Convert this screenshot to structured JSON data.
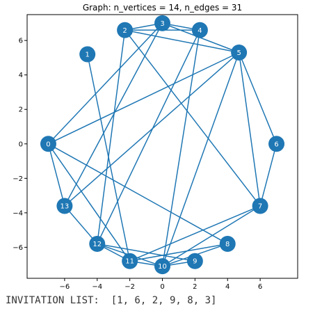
{
  "chart_data": {
    "type": "graph",
    "title": "Graph: n_vertices = 14, n_edges = 31",
    "xlim": [
      -8.3,
      8.3
    ],
    "ylim": [
      -7.8,
      7.5
    ],
    "xticks": [
      -6,
      -4,
      -2,
      0,
      2,
      4,
      6
    ],
    "yticks": [
      6,
      4,
      2,
      0,
      -2,
      -4,
      -6
    ],
    "nodes": [
      {
        "id": "0",
        "x": -7.0,
        "y": 0.0
      },
      {
        "id": "1",
        "x": -4.6,
        "y": 5.2
      },
      {
        "id": "2",
        "x": -2.3,
        "y": 6.6
      },
      {
        "id": "3",
        "x": 0.0,
        "y": 7.0
      },
      {
        "id": "4",
        "x": 2.3,
        "y": 6.6
      },
      {
        "id": "5",
        "x": 4.7,
        "y": 5.3
      },
      {
        "id": "6",
        "x": 7.0,
        "y": 0.0
      },
      {
        "id": "7",
        "x": 6.0,
        "y": -3.6
      },
      {
        "id": "8",
        "x": 4.0,
        "y": -5.8
      },
      {
        "id": "9",
        "x": 2.0,
        "y": -6.8
      },
      {
        "id": "10",
        "x": 0.0,
        "y": -7.1
      },
      {
        "id": "11",
        "x": -2.0,
        "y": -6.8
      },
      {
        "id": "12",
        "x": -4.0,
        "y": -5.8
      },
      {
        "id": "13",
        "x": -6.0,
        "y": -3.6
      }
    ],
    "edges": [
      [
        "0",
        "3"
      ],
      [
        "0",
        "5"
      ],
      [
        "0",
        "8"
      ],
      [
        "0",
        "11"
      ],
      [
        "0",
        "13"
      ],
      [
        "1",
        "11"
      ],
      [
        "2",
        "3"
      ],
      [
        "2",
        "5"
      ],
      [
        "2",
        "4"
      ],
      [
        "2",
        "7"
      ],
      [
        "2",
        "12"
      ],
      [
        "3",
        "5"
      ],
      [
        "3",
        "13"
      ],
      [
        "4",
        "10"
      ],
      [
        "4",
        "12"
      ],
      [
        "5",
        "6"
      ],
      [
        "5",
        "7"
      ],
      [
        "5",
        "10"
      ],
      [
        "5",
        "13"
      ],
      [
        "6",
        "7"
      ],
      [
        "7",
        "10"
      ],
      [
        "7",
        "11"
      ],
      [
        "8",
        "10"
      ],
      [
        "8",
        "11"
      ],
      [
        "9",
        "10"
      ],
      [
        "9",
        "12"
      ],
      [
        "10",
        "11"
      ],
      [
        "10",
        "12"
      ],
      [
        "11",
        "12"
      ],
      [
        "12",
        "13"
      ],
      [
        "3",
        "4"
      ]
    ]
  },
  "caption": {
    "label": "INVITATION LIST:",
    "value": "[1, 6, 2, 9, 8, 3]"
  },
  "colors": {
    "node": "#1f77b4",
    "edge": "#1f77b4",
    "node_label": "#ffffff"
  }
}
